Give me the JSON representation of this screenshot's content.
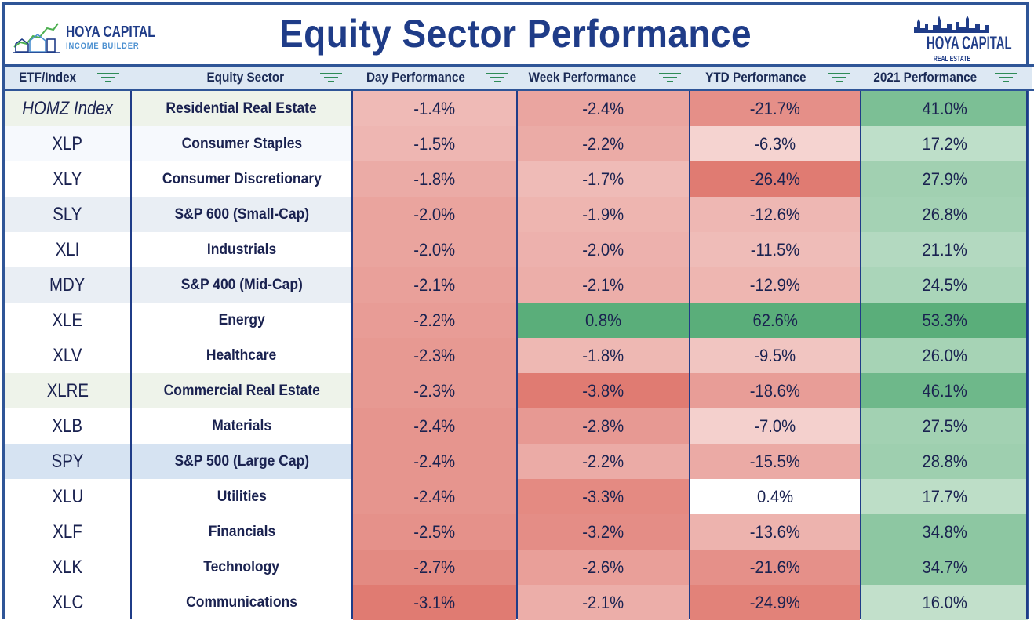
{
  "header": {
    "title": "Equity Sector Performance",
    "logo_left_line1": "HOYA CAPITAL",
    "logo_left_line2": "INCOME BUILDER",
    "logo_right_line1": "HOYA CAPITAL",
    "logo_right_line2": "REAL ESTATE"
  },
  "columns": [
    "ETF/Index",
    "Equity Sector",
    "Day Performance",
    "Week Performance",
    "YTD Performance",
    "2021 Performance"
  ],
  "colors": {
    "border": "#2f5597",
    "title": "#1f3c88",
    "filter_icon": "#2e8b57"
  },
  "chart_data": {
    "type": "table",
    "title": "Equity Sector Performance",
    "columns": [
      "ETF/Index",
      "Equity Sector",
      "Day Performance",
      "Week Performance",
      "YTD Performance",
      "2021 Performance"
    ],
    "rows": [
      {
        "etf": "HOMZ Index",
        "sector": "Residential Real Estate",
        "day": "-1.4%",
        "week": "-2.4%",
        "ytd": "-21.7%",
        "y2021": "41.0%",
        "highlight": "#eef3ea"
      },
      {
        "etf": "XLP",
        "sector": "Consumer Staples",
        "day": "-1.5%",
        "week": "-2.2%",
        "ytd": "-6.3%",
        "y2021": "17.2%",
        "highlight": "#f6f9fd"
      },
      {
        "etf": "XLY",
        "sector": "Consumer Discretionary",
        "day": "-1.8%",
        "week": "-1.7%",
        "ytd": "-26.4%",
        "y2021": "27.9%",
        "highlight": "#ffffff"
      },
      {
        "etf": "SLY",
        "sector": "S&P 600 (Small-Cap)",
        "day": "-2.0%",
        "week": "-1.9%",
        "ytd": "-12.6%",
        "y2021": "26.8%",
        "highlight": "#e9eef4"
      },
      {
        "etf": "XLI",
        "sector": "Industrials",
        "day": "-2.0%",
        "week": "-2.0%",
        "ytd": "-11.5%",
        "y2021": "21.1%",
        "highlight": "#ffffff"
      },
      {
        "etf": "MDY",
        "sector": "S&P 400 (Mid-Cap)",
        "day": "-2.1%",
        "week": "-2.1%",
        "ytd": "-12.9%",
        "y2021": "24.5%",
        "highlight": "#e9eef4"
      },
      {
        "etf": "XLE",
        "sector": "Energy",
        "day": "-2.2%",
        "week": "0.8%",
        "ytd": "62.6%",
        "y2021": "53.3%",
        "highlight": "#ffffff"
      },
      {
        "etf": "XLV",
        "sector": "Healthcare",
        "day": "-2.3%",
        "week": "-1.8%",
        "ytd": "-9.5%",
        "y2021": "26.0%",
        "highlight": "#ffffff"
      },
      {
        "etf": "XLRE",
        "sector": "Commercial Real Estate",
        "day": "-2.3%",
        "week": "-3.8%",
        "ytd": "-18.6%",
        "y2021": "46.1%",
        "highlight": "#eef3ea"
      },
      {
        "etf": "XLB",
        "sector": "Materials",
        "day": "-2.4%",
        "week": "-2.8%",
        "ytd": "-7.0%",
        "y2021": "27.5%",
        "highlight": "#ffffff"
      },
      {
        "etf": "SPY",
        "sector": "S&P 500 (Large Cap)",
        "day": "-2.4%",
        "week": "-2.2%",
        "ytd": "-15.5%",
        "y2021": "28.8%",
        "highlight": "#d6e3f2"
      },
      {
        "etf": "XLU",
        "sector": "Utilities",
        "day": "-2.4%",
        "week": "-3.3%",
        "ytd": "0.4%",
        "y2021": "17.7%",
        "highlight": "#ffffff"
      },
      {
        "etf": "XLF",
        "sector": "Financials",
        "day": "-2.5%",
        "week": "-3.2%",
        "ytd": "-13.6%",
        "y2021": "34.8%",
        "highlight": "#ffffff"
      },
      {
        "etf": "XLK",
        "sector": "Technology",
        "day": "-2.7%",
        "week": "-2.6%",
        "ytd": "-21.6%",
        "y2021": "34.7%",
        "highlight": "#ffffff"
      },
      {
        "etf": "XLC",
        "sector": "Communications",
        "day": "-3.1%",
        "week": "-2.1%",
        "ytd": "-24.9%",
        "y2021": "16.0%",
        "highlight": "#ffffff"
      }
    ]
  }
}
